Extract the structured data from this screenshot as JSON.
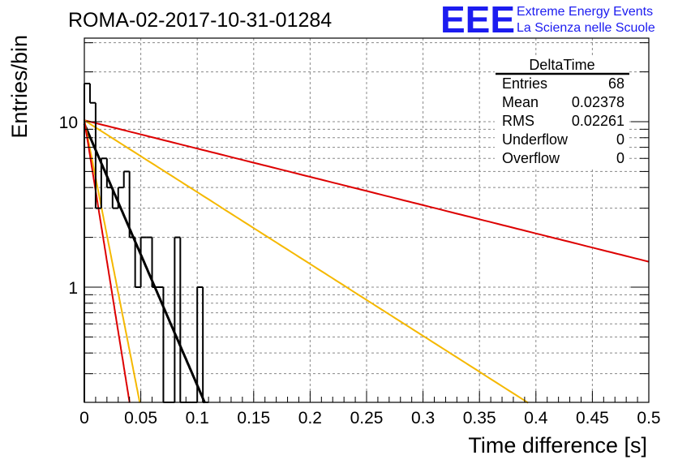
{
  "header": {
    "run_title": "ROMA-02-2017-10-31-01284",
    "logo_mark": "EEE",
    "logo_line1": "Extreme Energy Events",
    "logo_line2": "La Scienza nelle Scuole"
  },
  "colors": {
    "histogram": "#000000",
    "fit": "#000000",
    "red_curves": "#dd0000",
    "orange_curves": "#f5b800",
    "grid": "#888888",
    "logo": "#1c1cf0"
  },
  "stats_box": {
    "name": "DeltaTime",
    "rows": [
      {
        "label": "Entries",
        "value": "68"
      },
      {
        "label": "Mean",
        "value": "0.02378"
      },
      {
        "label": "RMS",
        "value": "0.02261"
      },
      {
        "label": "Underflow",
        "value": "0"
      },
      {
        "label": "Overflow",
        "value": "0"
      }
    ]
  },
  "chart_data": {
    "type": "histogram",
    "title": "ROMA-02-2017-10-31-01284",
    "xlabel": "Time difference [s]",
    "ylabel": "Entries/bin",
    "xlim": [
      0,
      0.5
    ],
    "ylim": [
      0.2,
      33
    ],
    "y_scale": "log",
    "grid": true,
    "x_ticks": [
      "0",
      "0.05",
      "0.1",
      "0.15",
      "0.2",
      "0.25",
      "0.3",
      "0.35",
      "0.4",
      "0.45",
      "0.5"
    ],
    "y_ticks": [
      "1",
      "10"
    ],
    "bin_width": 0.005,
    "bin_edges_start": 0,
    "counts": [
      17,
      13,
      3,
      6,
      4,
      3,
      4,
      5,
      2,
      1,
      2,
      2,
      1,
      1,
      0,
      0,
      2,
      0,
      0,
      0,
      1,
      0
    ],
    "curves": [
      {
        "color": "red",
        "N0": 10.2,
        "tau": 0.254
      },
      {
        "color": "orange",
        "N0": 10.2,
        "tau": 0.1
      },
      {
        "color": "black",
        "N0": 9.7,
        "tau": 0.0275
      },
      {
        "color": "orange",
        "N0": 10.2,
        "tau": 0.0125
      },
      {
        "color": "red",
        "N0": 10.2,
        "tau": 0.0102
      }
    ]
  }
}
